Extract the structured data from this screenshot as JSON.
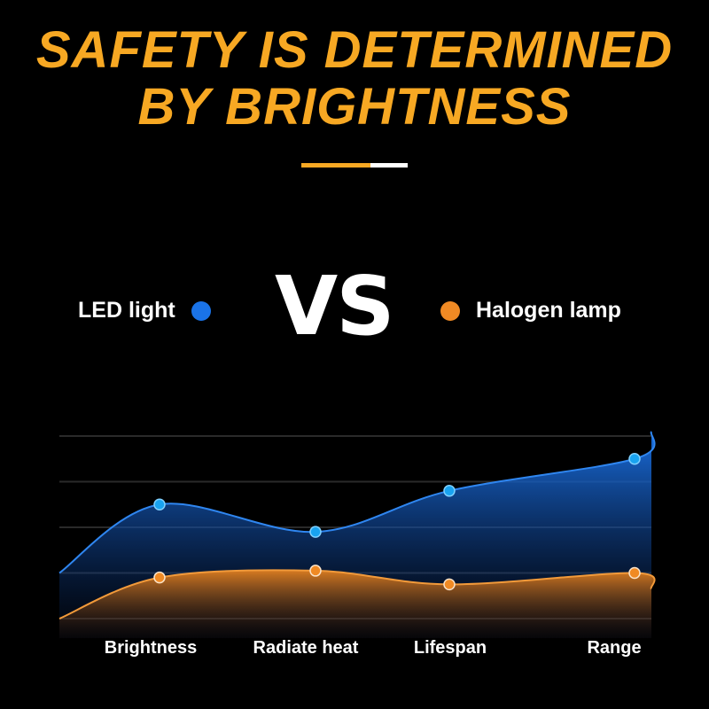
{
  "header": {
    "title_line1": "SAFETY IS DETERMINED",
    "title_line2": "BY BRIGHTNESS",
    "vs": "VS"
  },
  "colors": {
    "accent": "#f7a823",
    "led": "#1a73e8",
    "halogen": "#f08a24",
    "led_point": "#19a3f0"
  },
  "chart_data": {
    "type": "area",
    "categories": [
      "Brightness",
      "Radiate heat",
      "Lifespan",
      "Range"
    ],
    "series": [
      {
        "name": "LED light",
        "values": [
          2.5,
          1.9,
          2.8,
          3.5
        ]
      },
      {
        "name": "Halogen lamp",
        "values": [
          0.9,
          1.05,
          0.75,
          1.0
        ]
      }
    ],
    "ylim": [
      0,
      4
    ],
    "grid": true,
    "legend": "top",
    "xlabel": "",
    "ylabel": ""
  }
}
